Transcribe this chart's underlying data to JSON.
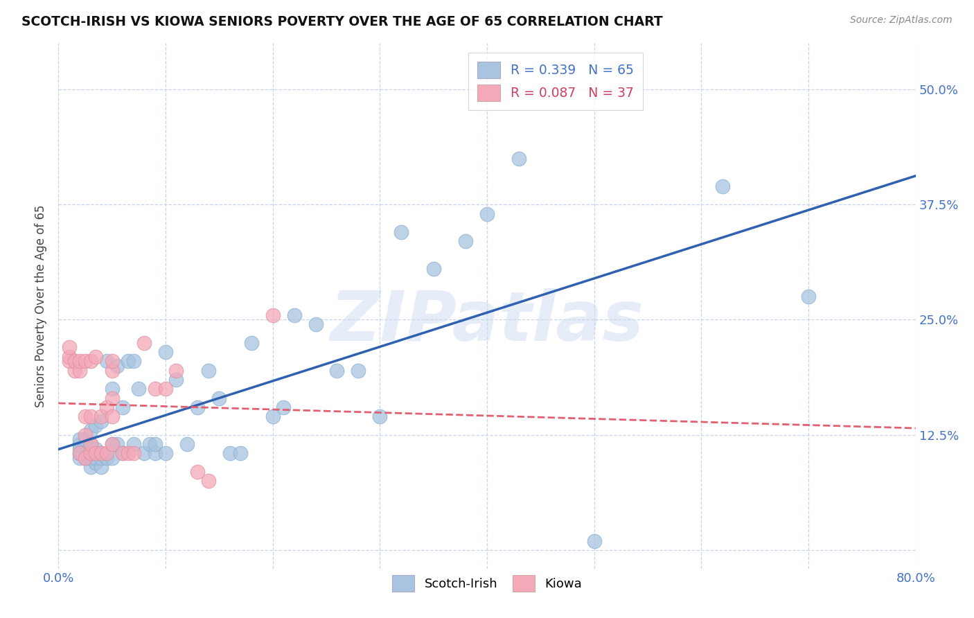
{
  "title": "SCOTCH-IRISH VS KIOWA SENIORS POVERTY OVER THE AGE OF 65 CORRELATION CHART",
  "source": "Source: ZipAtlas.com",
  "ylabel": "Seniors Poverty Over the Age of 65",
  "xlim": [
    0.0,
    0.8
  ],
  "ylim": [
    -0.02,
    0.55
  ],
  "x_ticks": [
    0.0,
    0.1,
    0.2,
    0.3,
    0.4,
    0.5,
    0.6,
    0.7,
    0.8
  ],
  "y_ticks": [
    0.0,
    0.125,
    0.25,
    0.375,
    0.5
  ],
  "y_tick_labels_right": [
    "",
    "12.5%",
    "25.0%",
    "37.5%",
    "50.0%"
  ],
  "scotch_irish_R": 0.339,
  "scotch_irish_N": 65,
  "kiowa_R": 0.087,
  "kiowa_N": 37,
  "scotch_irish_color": "#a8c4e0",
  "kiowa_color": "#f4a8b8",
  "scotch_irish_line_color": "#3060b0",
  "kiowa_line_color": "#e06070",
  "background_color": "#ffffff",
  "grid_color": "#c8d4e8",
  "watermark": "ZIPatlas",
  "scotch_irish_x": [
    0.02,
    0.02,
    0.02,
    0.02,
    0.02,
    0.025,
    0.025,
    0.025,
    0.03,
    0.03,
    0.03,
    0.03,
    0.03,
    0.03,
    0.03,
    0.035,
    0.035,
    0.035,
    0.035,
    0.04,
    0.04,
    0.04,
    0.04,
    0.045,
    0.045,
    0.05,
    0.05,
    0.05,
    0.055,
    0.055,
    0.06,
    0.06,
    0.065,
    0.07,
    0.07,
    0.075,
    0.08,
    0.085,
    0.09,
    0.09,
    0.1,
    0.1,
    0.11,
    0.12,
    0.13,
    0.14,
    0.15,
    0.16,
    0.17,
    0.18,
    0.2,
    0.21,
    0.22,
    0.24,
    0.26,
    0.28,
    0.3,
    0.32,
    0.35,
    0.4,
    0.43,
    0.5,
    0.62,
    0.7,
    0.38
  ],
  "scotch_irish_y": [
    0.1,
    0.11,
    0.105,
    0.115,
    0.12,
    0.1,
    0.115,
    0.12,
    0.09,
    0.1,
    0.1,
    0.105,
    0.11,
    0.115,
    0.13,
    0.095,
    0.1,
    0.11,
    0.135,
    0.09,
    0.1,
    0.105,
    0.14,
    0.1,
    0.205,
    0.1,
    0.115,
    0.175,
    0.115,
    0.2,
    0.105,
    0.155,
    0.205,
    0.115,
    0.205,
    0.175,
    0.105,
    0.115,
    0.105,
    0.115,
    0.105,
    0.215,
    0.185,
    0.115,
    0.155,
    0.195,
    0.165,
    0.105,
    0.105,
    0.225,
    0.145,
    0.155,
    0.255,
    0.245,
    0.195,
    0.195,
    0.145,
    0.345,
    0.305,
    0.365,
    0.425,
    0.01,
    0.395,
    0.275,
    0.335
  ],
  "kiowa_x": [
    0.01,
    0.01,
    0.01,
    0.015,
    0.015,
    0.02,
    0.02,
    0.02,
    0.025,
    0.025,
    0.025,
    0.025,
    0.03,
    0.03,
    0.03,
    0.03,
    0.035,
    0.035,
    0.04,
    0.04,
    0.045,
    0.045,
    0.05,
    0.05,
    0.05,
    0.05,
    0.05,
    0.06,
    0.065,
    0.07,
    0.08,
    0.09,
    0.1,
    0.11,
    0.13,
    0.14,
    0.2
  ],
  "kiowa_y": [
    0.205,
    0.21,
    0.22,
    0.195,
    0.205,
    0.105,
    0.195,
    0.205,
    0.1,
    0.125,
    0.145,
    0.205,
    0.105,
    0.115,
    0.145,
    0.205,
    0.105,
    0.21,
    0.105,
    0.145,
    0.105,
    0.155,
    0.115,
    0.145,
    0.165,
    0.195,
    0.205,
    0.105,
    0.105,
    0.105,
    0.225,
    0.175,
    0.175,
    0.195,
    0.085,
    0.075,
    0.255
  ]
}
